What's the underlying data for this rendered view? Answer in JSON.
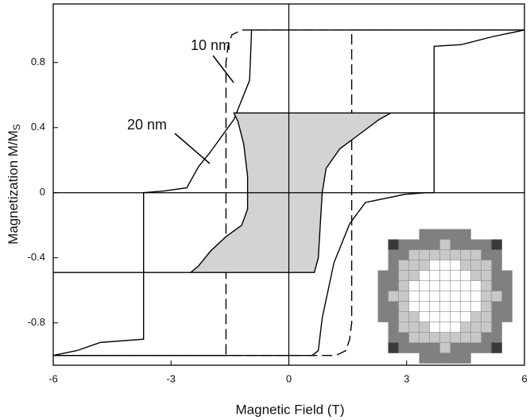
{
  "chart_data": {
    "type": "line",
    "x_label": "Magnetic Field (T)",
    "y_label": "Magnetization M/M",
    "y_label_sub": "S",
    "xlim": [
      -6,
      6
    ],
    "ylim": [
      -1.06,
      1.16
    ],
    "xticks": [
      -6,
      -3,
      0,
      3,
      6
    ],
    "yticks": [
      -0.8,
      -0.4,
      0,
      0.4,
      0.8
    ],
    "zero_lines": true,
    "annotations": [
      {
        "text": "10 nm"
      },
      {
        "text": "20 nm"
      }
    ],
    "series": [
      {
        "color": "#000000",
        "dashed": false,
        "x": [
          6,
          5.2,
          4.4,
          3.7,
          3.7,
          3.5,
          2.95,
          1.95,
          1.55,
          1.15,
          0.85,
          0.75,
          0.6,
          -6,
          -5.4,
          -4.8,
          -3.7,
          -3.7,
          -3.2,
          -2.6,
          -2.3,
          -2.0,
          -1.4,
          -1.0,
          -0.95,
          6
        ],
        "values": [
          1.0,
          0.96,
          0.91,
          0.9,
          0,
          0,
          -0.01,
          -0.06,
          -0.19,
          -0.43,
          -0.77,
          -0.97,
          -1.0,
          -1.0,
          -0.97,
          -0.92,
          -0.9,
          0,
          0.01,
          0.03,
          0.16,
          0.25,
          0.45,
          0.69,
          1.0,
          1.0
        ]
      },
      {
        "color": "#000000",
        "dashed": true,
        "x": [
          6,
          -1.2,
          -1.45,
          -1.55,
          -1.6,
          -1.6,
          -6,
          1.2,
          1.45,
          1.55,
          1.6,
          1.6,
          6
        ],
        "values": [
          1.0,
          1.0,
          0.97,
          0.9,
          0.8,
          -1.0,
          -1.0,
          -1.0,
          -0.97,
          -0.9,
          -0.8,
          1.0,
          1.0
        ]
      },
      {
        "color": "#000000",
        "dashed": false,
        "fill": "#d3d3d3",
        "x": [
          6,
          -1.4,
          -1.3,
          -1.15,
          -1.05,
          -1.05,
          -1.2,
          -1.6,
          -2.0,
          -2.3,
          -2.5,
          -6,
          0.65,
          0.75,
          0.8,
          0.85,
          0.95,
          1.3,
          1.8,
          2.3,
          2.6,
          6
        ],
        "values": [
          0.49,
          0.49,
          0.44,
          0.3,
          0.1,
          -0.1,
          -0.2,
          -0.27,
          -0.36,
          -0.45,
          -0.49,
          -0.49,
          -0.49,
          -0.4,
          -0.2,
          0.0,
          0.15,
          0.27,
          0.36,
          0.45,
          0.49,
          0.49
        ]
      }
    ]
  }
}
